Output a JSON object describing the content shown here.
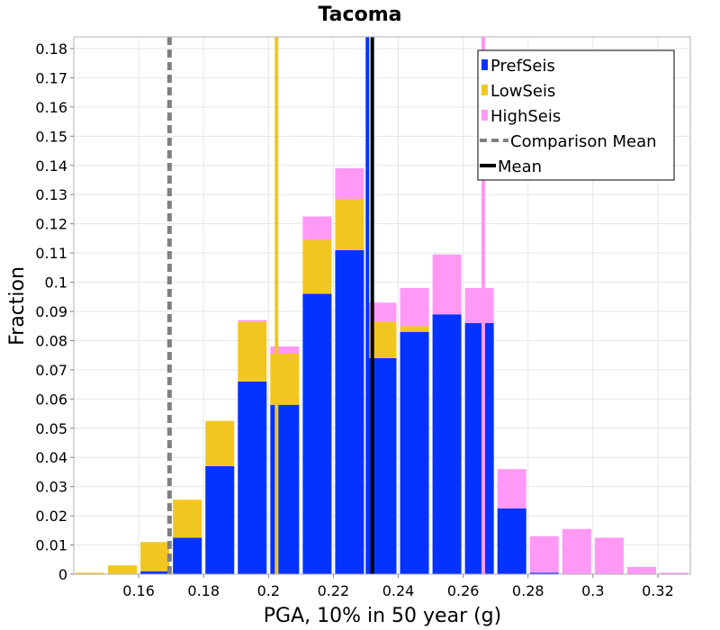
{
  "chart_data": {
    "type": "bar",
    "title": "Tacoma",
    "xlabel": "PGA, 10% in 50 year (g)",
    "ylabel": "Fraction",
    "xlim": [
      0.14,
      0.33
    ],
    "ylim": [
      0,
      0.184
    ],
    "bin_width": 0.01,
    "bin_centers": [
      0.145,
      0.155,
      0.165,
      0.175,
      0.185,
      0.195,
      0.205,
      0.215,
      0.225,
      0.235,
      0.245,
      0.255,
      0.265,
      0.275,
      0.285,
      0.295,
      0.305,
      0.315,
      0.325
    ],
    "x_ticks": [
      0.16,
      0.18,
      0.2,
      0.22,
      0.24,
      0.26,
      0.28,
      0.3,
      0.32
    ],
    "x_tick_labels": [
      "0.16",
      "0.18",
      "0.2",
      "0.22",
      "0.24",
      "0.26",
      "0.28",
      "0.3",
      "0.32"
    ],
    "y_ticks": [
      0,
      0.01,
      0.02,
      0.03,
      0.04,
      0.05,
      0.06,
      0.07,
      0.08,
      0.09,
      0.1,
      0.11,
      0.12,
      0.13,
      0.14,
      0.15,
      0.16,
      0.17,
      0.18
    ],
    "y_tick_labels": [
      "0",
      "0.01",
      "0.02",
      "0.03",
      "0.04",
      "0.05",
      "0.06",
      "0.07",
      "0.08",
      "0.09",
      "0.1",
      "0.11",
      "0.12",
      "0.13",
      "0.14",
      "0.15",
      "0.16",
      "0.17",
      "0.18"
    ],
    "stacked": true,
    "series": [
      {
        "name": "PrefSeis",
        "color": "#0433ff",
        "values": [
          0,
          0,
          0.001,
          0.0125,
          0.037,
          0.066,
          0.058,
          0.096,
          0.111,
          0.074,
          0.083,
          0.089,
          0.086,
          0.0225,
          0.0005,
          0,
          0,
          0,
          0
        ]
      },
      {
        "name": "LowSeis",
        "color": "#f2c621",
        "values": [
          0.0005,
          0.003,
          0.01,
          0.013,
          0.0155,
          0.0205,
          0.0175,
          0.0185,
          0.0175,
          0.0125,
          0.002,
          0,
          0,
          0,
          0,
          0,
          0,
          0,
          0
        ]
      },
      {
        "name": "HighSeis",
        "color": "#ff99f5",
        "values": [
          0,
          0,
          0,
          0,
          0,
          0.0005,
          0.0025,
          0.008,
          0.0105,
          0.0065,
          0.013,
          0.0205,
          0.012,
          0.0135,
          0.0125,
          0.0155,
          0.0125,
          0.0025,
          0.0005
        ]
      }
    ],
    "vertical_lines": [
      {
        "name": "LowSeis mean",
        "x": 0.2025,
        "color": "#f2c621",
        "style": "solid",
        "width": 4
      },
      {
        "name": "PrefSeis mean",
        "x": 0.2305,
        "color": "#0433ff",
        "style": "solid",
        "width": 4
      },
      {
        "name": "HighSeis mean",
        "x": 0.2662,
        "color": "#ff99f5",
        "style": "solid",
        "width": 4
      },
      {
        "name": "Comparison Mean",
        "x": 0.1695,
        "color": "#808080",
        "style": "dashed",
        "width": 5
      },
      {
        "name": "Mean",
        "x": 0.232,
        "color": "#000000",
        "style": "solid",
        "width": 4
      }
    ],
    "legend": {
      "position": "top-right",
      "entries": [
        {
          "label": "PrefSeis",
          "kind": "box",
          "color": "#0433ff"
        },
        {
          "label": "LowSeis",
          "kind": "box",
          "color": "#f2c621"
        },
        {
          "label": "HighSeis",
          "kind": "box",
          "color": "#ff99f5"
        },
        {
          "label": "Comparison Mean",
          "kind": "dash",
          "color": "#808080"
        },
        {
          "label": "Mean",
          "kind": "line",
          "color": "#000000"
        }
      ]
    },
    "grid": true
  }
}
